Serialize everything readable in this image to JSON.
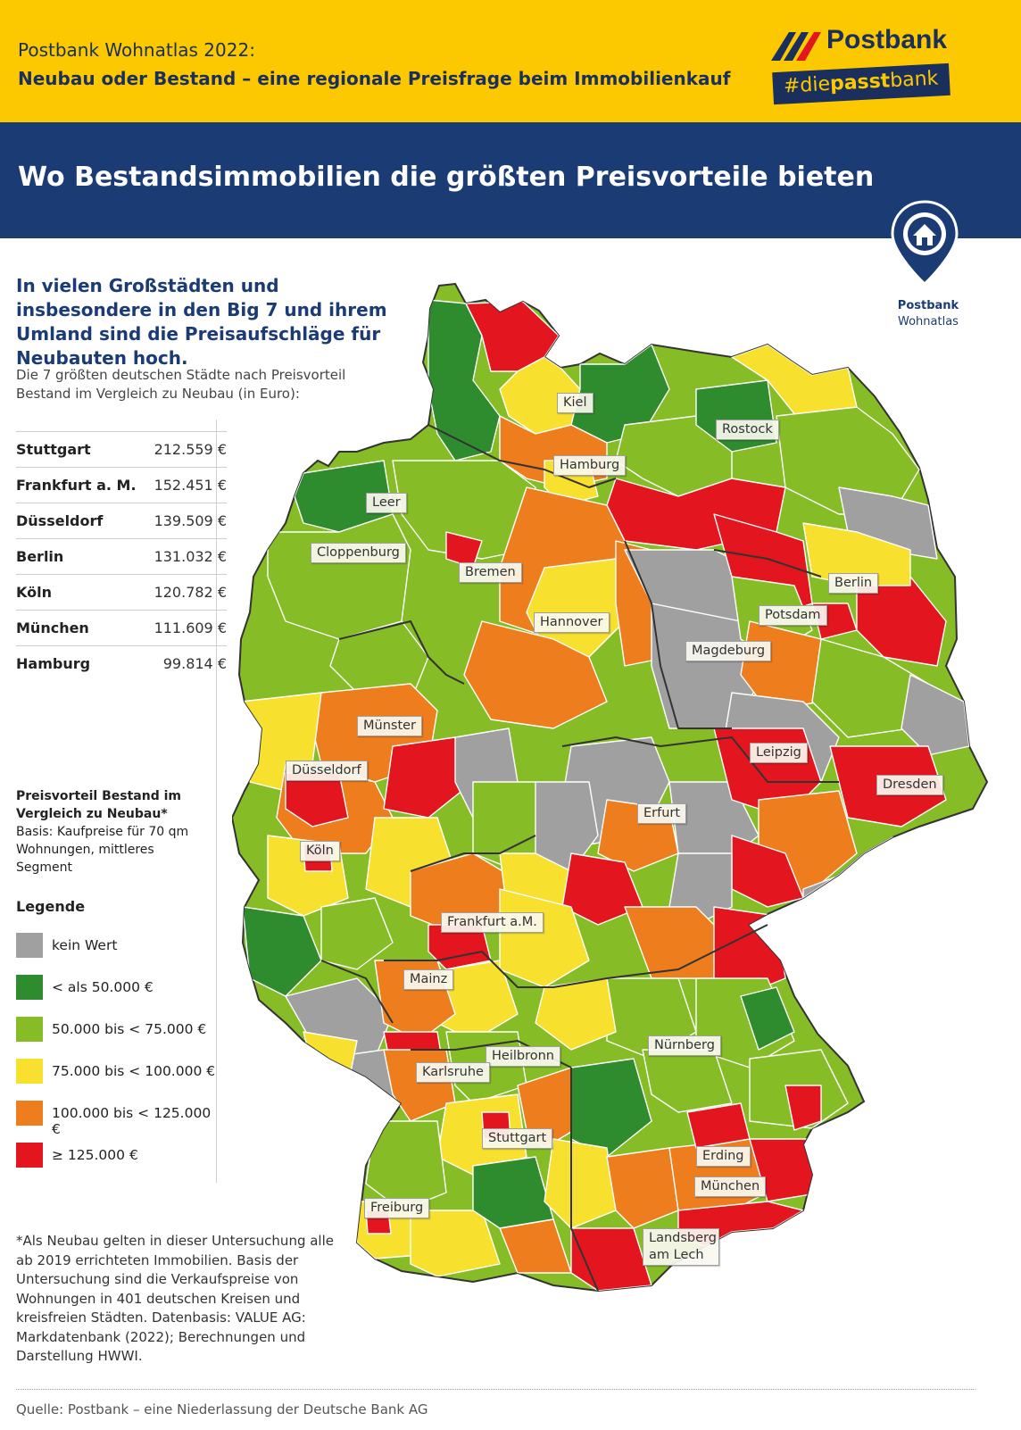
{
  "header": {
    "line1": "Postbank Wohnatlas 2022:",
    "line2": "Neubau oder Bestand – eine regionale Preisfrage beim Immobilienkauf"
  },
  "logo": {
    "name": "Postbank",
    "tag_prefix": "#die",
    "tag_bold": "passt",
    "tag_suffix": "bank"
  },
  "banner": {
    "title": "Wo Bestandsimmobilien die größten Preisvorteile bieten"
  },
  "pin": {
    "line1": "Postbank",
    "line2": "Wohnatlas"
  },
  "intro": {
    "lead": "In vielen Großstädten und insbesondere in den Big 7 und ihrem Umland sind die Preisaufschläge für Neubauten hoch.",
    "subtitle": "Die 7 größten deutschen Städte nach Preisvorteil Bestand im Vergleich zu Neubau (in Euro):"
  },
  "ranking": [
    {
      "city": "Stuttgart",
      "value": "212.559 €"
    },
    {
      "city": "Frankfurt a. M.",
      "value": "152.451 €"
    },
    {
      "city": "Düsseldorf",
      "value": "139.509 €"
    },
    {
      "city": "Berlin",
      "value": "131.032 €"
    },
    {
      "city": "Köln",
      "value": "120.782 €"
    },
    {
      "city": "München",
      "value": "111.609 €"
    },
    {
      "city": "Hamburg",
      "value": "99.814 €"
    }
  ],
  "legend_info": {
    "title": "Preisvorteil Bestand im Vergleich zu Neubau*",
    "basis": "Basis: Kaufpreise für 70 qm Wohnungen, mittleres Segment"
  },
  "legend": {
    "title": "Legende",
    "items": [
      {
        "label": "kein Wert",
        "color": "#a0a0a0"
      },
      {
        "label": "< als 50.000 €",
        "color": "#2e8b2e"
      },
      {
        "label": "50.000 bis < 75.000 €",
        "color": "#86bc25"
      },
      {
        "label": "75.000 bis < 100.000 €",
        "color": "#f7e02e"
      },
      {
        "label": "100.000 bis < 125.000 €",
        "color": "#ee7d1e"
      },
      {
        "label": "≥ 125.000 €",
        "color": "#e3151e"
      }
    ]
  },
  "footnote": "*Als Neubau gelten in dieser Untersuchung alle ab 2019 errichteten Immobilien. Basis der Untersuchung sind die Verkaufspreise von Wohnungen in 401 deutschen Kreisen und kreisfreien Städten. Datenbasis: VALUE AG: Markdatenbank (2022); Berechnungen und Darstellung HWWI.",
  "source": "Quelle: Postbank – eine Niederlassung der Deutsche Bank AG",
  "map": {
    "cities": [
      {
        "name": "Kiel"
      },
      {
        "name": "Rostock"
      },
      {
        "name": "Hamburg"
      },
      {
        "name": "Leer"
      },
      {
        "name": "Cloppenburg"
      },
      {
        "name": "Bremen"
      },
      {
        "name": "Berlin"
      },
      {
        "name": "Potsdam"
      },
      {
        "name": "Hannover"
      },
      {
        "name": "Magdeburg"
      },
      {
        "name": "Münster"
      },
      {
        "name": "Leipzig"
      },
      {
        "name": "Düsseldorf"
      },
      {
        "name": "Dresden"
      },
      {
        "name": "Erfurt"
      },
      {
        "name": "Köln"
      },
      {
        "name": "Frankfurt a.M."
      },
      {
        "name": "Mainz"
      },
      {
        "name": "Nürnberg"
      },
      {
        "name": "Heilbronn"
      },
      {
        "name": "Karlsruhe"
      },
      {
        "name": "Stuttgart"
      },
      {
        "name": "Erding"
      },
      {
        "name": "München"
      },
      {
        "name": "Freiburg"
      },
      {
        "name": "Landsberg am Lech"
      }
    ]
  }
}
